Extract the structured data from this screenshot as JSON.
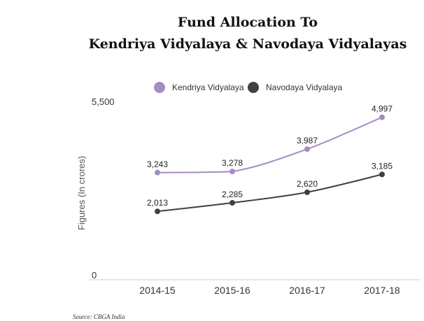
{
  "chart_data": {
    "type": "line",
    "title_line1": "Fund Allocation To",
    "title_line2": "Kendriya Vidyalaya & Navodaya Vidyalayas",
    "xlabel": "",
    "ylabel": "Figures (In crores)",
    "categories": [
      "2014-15",
      "2015-16",
      "2016-17",
      "2017-18"
    ],
    "ylim": [
      0,
      5500
    ],
    "y_ticks": [
      "0",
      "5,500"
    ],
    "grid": false,
    "legend_position": "top",
    "series": [
      {
        "name": "Kendriya Vidyalaya",
        "color": "#a58bc4",
        "values": [
          3243,
          3278,
          3987,
          4997
        ],
        "labels": [
          "3,243",
          "3,278",
          "3,987",
          "4,997"
        ]
      },
      {
        "name": "Navodaya Vidyalaya",
        "color": "#404040",
        "values": [
          2013,
          2285,
          2620,
          3185
        ],
        "labels": [
          "2,013",
          "2,285",
          "2,620",
          "3,185"
        ]
      }
    ],
    "source": "Source: CBGA India"
  }
}
